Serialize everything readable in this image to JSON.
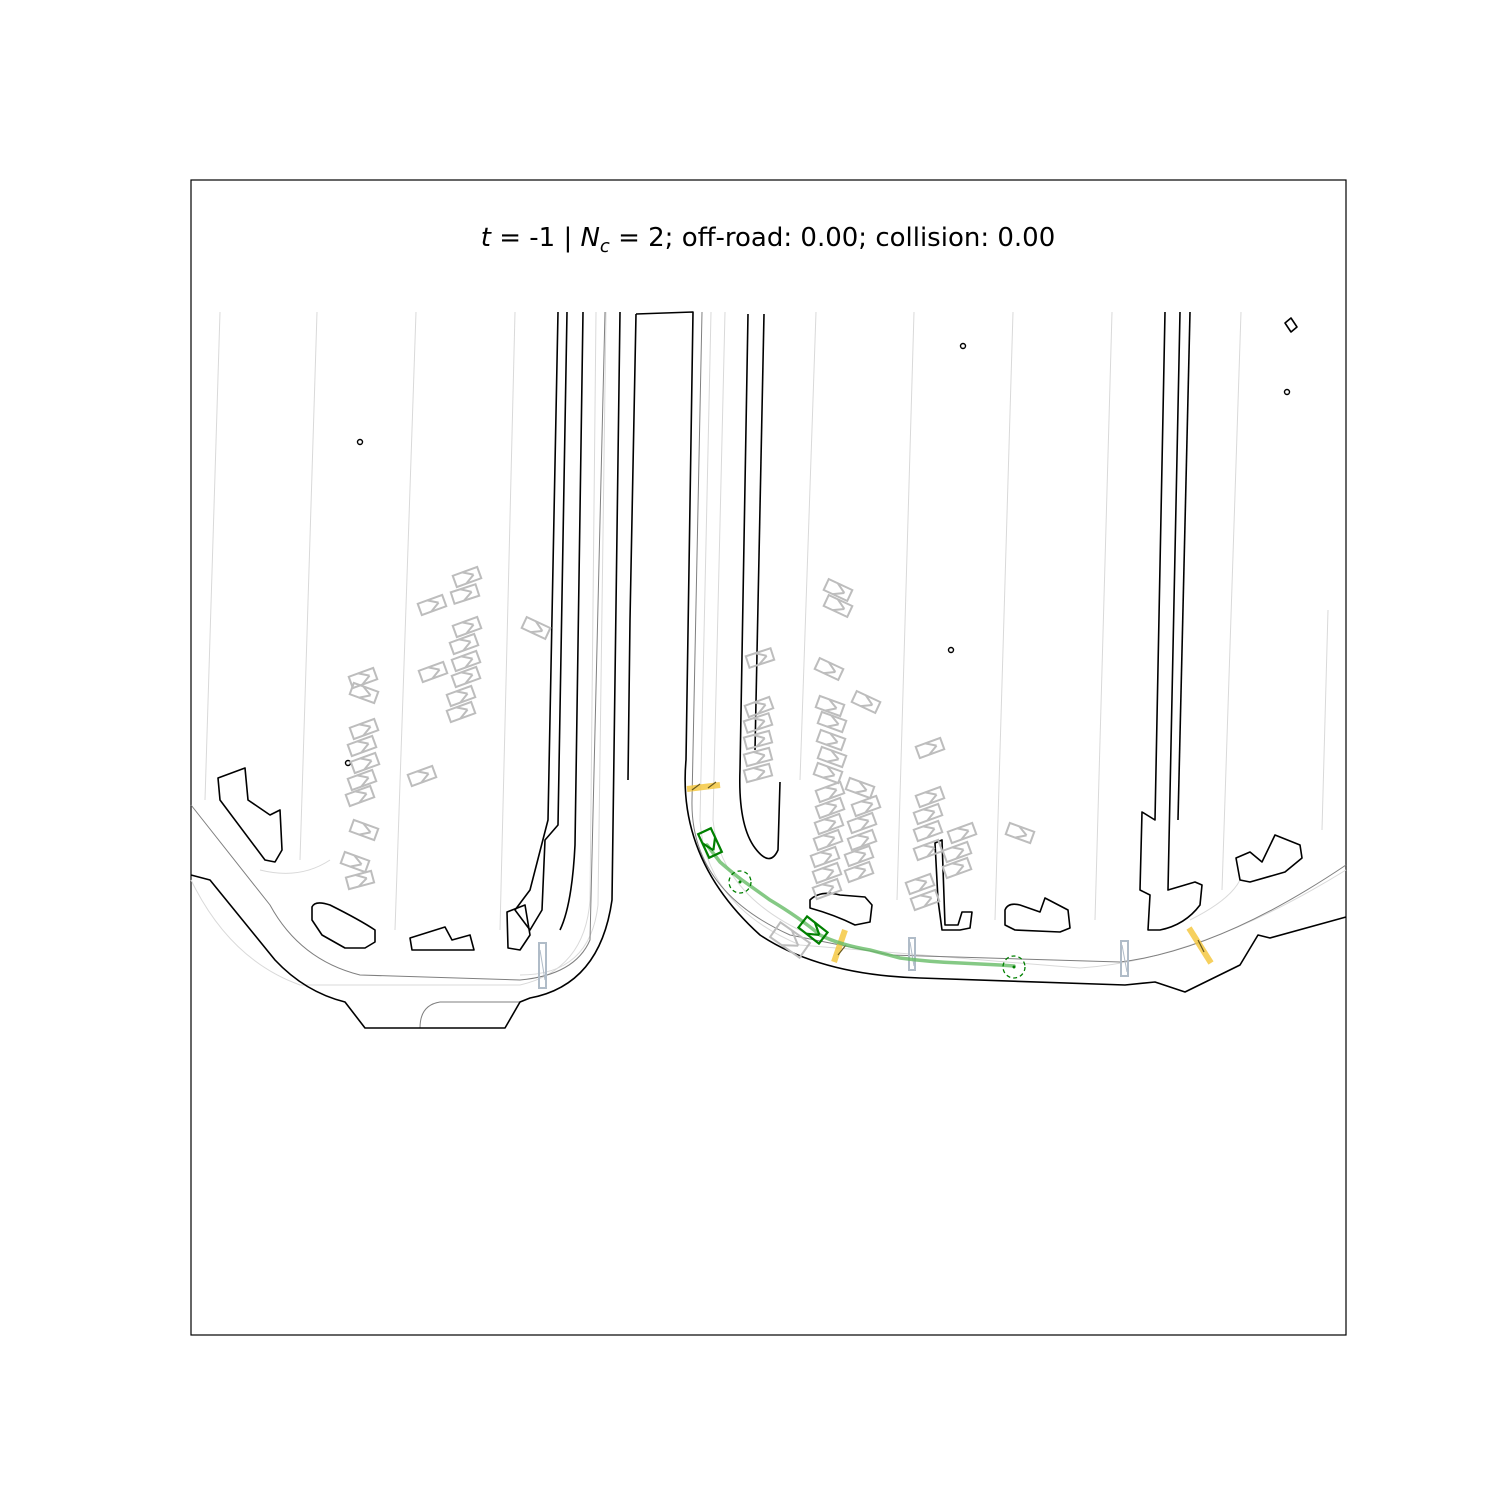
{
  "title": {
    "t_symbol": "t",
    "t_value": " = -1  | ",
    "n_symbol": "N",
    "n_subscript": "c",
    "rest": " = 2; off-road: 0.00; collision: 0.00"
  },
  "colors": {
    "road_edge": "#000000",
    "lane_line": "#d9d9d9",
    "parked_vehicle": "#bdbdbd",
    "controlled_vehicle": "#008000",
    "trajectory": "#66bb66",
    "crosswalk": "#f5c842",
    "stop_line": "#b0bcc8"
  }
}
